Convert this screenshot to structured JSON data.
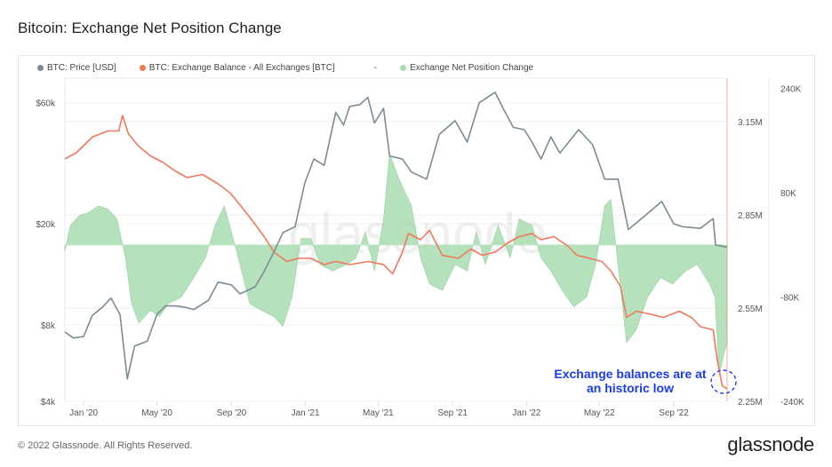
{
  "title": "Bitcoin: Exchange Net Position Change",
  "footer": "© 2022 Glassnode. All Rights Reserved.",
  "brand": "glassnode",
  "watermark": "glassnode",
  "annotation": "Exchange balances are at an historic low",
  "colors": {
    "price": "#7c8b94",
    "balance": "#f0785a",
    "net": "#a8dcb0",
    "annotation": "#1a3cf0"
  },
  "chart_data": {
    "type": "line",
    "title": "Bitcoin: Exchange Net Position Change",
    "legend": [
      "BTC: Price [USD]",
      "BTC: Exchange Balance - All Exchanges [BTC]",
      "-",
      "Exchange Net Position Change"
    ],
    "legend_position": "top-left",
    "x_ticks": [
      "Jan '20",
      "May '20",
      "Sep '20",
      "Jan '21",
      "May '21",
      "Sep '21",
      "Jan '22",
      "May '22",
      "Sep '22"
    ],
    "xlim": [
      "2019-12-01",
      "2022-11-28"
    ],
    "y_left": {
      "scale": "log",
      "ticks": [
        "$4k",
        "$8k",
        "$20k",
        "$60k"
      ],
      "tick_values": [
        4000,
        8000,
        20000,
        60000
      ],
      "range": [
        4000,
        75000
      ]
    },
    "y_right1": {
      "ticks": [
        "2.25M",
        "2.55M",
        "2.85M",
        "3.15M"
      ],
      "tick_values": [
        2.25,
        2.55,
        2.85,
        3.15
      ],
      "range": [
        2.25,
        3.29
      ]
    },
    "y_right2": {
      "ticks": [
        "240K",
        "80K",
        "-80K",
        "-240K"
      ],
      "tick_values": [
        240,
        80,
        -80,
        -240
      ],
      "range": [
        -240,
        256
      ]
    },
    "series": [
      {
        "name": "BTC: Price [USD]",
        "axis": "left",
        "points": [
          [
            "2019-12-01",
            7500
          ],
          [
            "2019-12-15",
            7100
          ],
          [
            "2020-01-01",
            7200
          ],
          [
            "2020-01-15",
            8700
          ],
          [
            "2020-02-01",
            9400
          ],
          [
            "2020-02-15",
            10200
          ],
          [
            "2020-03-01",
            8800
          ],
          [
            "2020-03-13",
            4900
          ],
          [
            "2020-03-25",
            6600
          ],
          [
            "2020-04-15",
            6900
          ],
          [
            "2020-05-01",
            8800
          ],
          [
            "2020-05-15",
            9500
          ],
          [
            "2020-06-01",
            9500
          ],
          [
            "2020-06-15",
            9400
          ],
          [
            "2020-07-01",
            9200
          ],
          [
            "2020-07-25",
            10000
          ],
          [
            "2020-08-10",
            11800
          ],
          [
            "2020-09-01",
            11500
          ],
          [
            "2020-09-15",
            10600
          ],
          [
            "2020-10-10",
            11300
          ],
          [
            "2020-10-25",
            13000
          ],
          [
            "2020-11-10",
            15500
          ],
          [
            "2020-11-25",
            18500
          ],
          [
            "2020-12-15",
            19500
          ],
          [
            "2020-12-31",
            29000
          ],
          [
            "2021-01-15",
            36000
          ],
          [
            "2021-02-01",
            34000
          ],
          [
            "2021-02-20",
            55000
          ],
          [
            "2021-03-05",
            49000
          ],
          [
            "2021-03-15",
            58000
          ],
          [
            "2021-04-01",
            59000
          ],
          [
            "2021-04-14",
            63000
          ],
          [
            "2021-04-25",
            50000
          ],
          [
            "2021-05-10",
            57000
          ],
          [
            "2021-05-20",
            37000
          ],
          [
            "2021-06-10",
            36000
          ],
          [
            "2021-06-25",
            32000
          ],
          [
            "2021-07-20",
            30000
          ],
          [
            "2021-08-10",
            45000
          ],
          [
            "2021-09-05",
            51000
          ],
          [
            "2021-09-25",
            42000
          ],
          [
            "2021-10-15",
            60000
          ],
          [
            "2021-11-10",
            66000
          ],
          [
            "2021-11-25",
            56000
          ],
          [
            "2021-12-10",
            48000
          ],
          [
            "2021-12-28",
            47000
          ],
          [
            "2022-01-10",
            42000
          ],
          [
            "2022-01-25",
            36000
          ],
          [
            "2022-02-10",
            44000
          ],
          [
            "2022-02-25",
            38000
          ],
          [
            "2022-03-28",
            47000
          ],
          [
            "2022-04-20",
            41000
          ],
          [
            "2022-05-10",
            30000
          ],
          [
            "2022-06-01",
            30000
          ],
          [
            "2022-06-18",
            19000
          ],
          [
            "2022-07-10",
            21000
          ],
          [
            "2022-08-12",
            24500
          ],
          [
            "2022-09-01",
            20000
          ],
          [
            "2022-09-15",
            19500
          ],
          [
            "2022-10-15",
            19200
          ],
          [
            "2022-11-05",
            21000
          ],
          [
            "2022-11-09",
            16500
          ],
          [
            "2022-11-28",
            16200
          ]
        ]
      },
      {
        "name": "BTC: Exchange Balance - All Exchanges [BTC]",
        "axis": "right1",
        "unit": "M",
        "points": [
          [
            "2019-12-01",
            3.03
          ],
          [
            "2019-12-20",
            3.05
          ],
          [
            "2020-01-15",
            3.1
          ],
          [
            "2020-02-10",
            3.12
          ],
          [
            "2020-02-28",
            3.12
          ],
          [
            "2020-03-05",
            3.17
          ],
          [
            "2020-03-15",
            3.11
          ],
          [
            "2020-04-01",
            3.07
          ],
          [
            "2020-04-20",
            3.04
          ],
          [
            "2020-05-10",
            3.02
          ],
          [
            "2020-06-01",
            2.99
          ],
          [
            "2020-06-20",
            2.97
          ],
          [
            "2020-07-15",
            2.98
          ],
          [
            "2020-08-10",
            2.95
          ],
          [
            "2020-08-30",
            2.92
          ],
          [
            "2020-09-20",
            2.87
          ],
          [
            "2020-10-10",
            2.82
          ],
          [
            "2020-10-25",
            2.78
          ],
          [
            "2020-11-10",
            2.73
          ],
          [
            "2020-12-01",
            2.7
          ],
          [
            "2020-12-20",
            2.71
          ],
          [
            "2021-01-10",
            2.71
          ],
          [
            "2021-02-01",
            2.69
          ],
          [
            "2021-02-20",
            2.7
          ],
          [
            "2021-03-15",
            2.69
          ],
          [
            "2021-04-15",
            2.7
          ],
          [
            "2021-05-10",
            2.69
          ],
          [
            "2021-05-25",
            2.66
          ],
          [
            "2021-06-10",
            2.73
          ],
          [
            "2021-06-20",
            2.79
          ],
          [
            "2021-07-10",
            2.77
          ],
          [
            "2021-07-25",
            2.8
          ],
          [
            "2021-08-15",
            2.72
          ],
          [
            "2021-09-10",
            2.71
          ],
          [
            "2021-10-01",
            2.74
          ],
          [
            "2021-10-20",
            2.72
          ],
          [
            "2021-11-10",
            2.73
          ],
          [
            "2021-12-01",
            2.76
          ],
          [
            "2021-12-20",
            2.78
          ],
          [
            "2022-01-10",
            2.79
          ],
          [
            "2022-01-25",
            2.77
          ],
          [
            "2022-02-15",
            2.78
          ],
          [
            "2022-03-10",
            2.75
          ],
          [
            "2022-03-25",
            2.72
          ],
          [
            "2022-04-15",
            2.71
          ],
          [
            "2022-05-05",
            2.7
          ],
          [
            "2022-05-20",
            2.67
          ],
          [
            "2022-06-05",
            2.62
          ],
          [
            "2022-06-15",
            2.52
          ],
          [
            "2022-07-01",
            2.54
          ],
          [
            "2022-07-25",
            2.53
          ],
          [
            "2022-08-15",
            2.52
          ],
          [
            "2022-09-10",
            2.54
          ],
          [
            "2022-09-30",
            2.52
          ],
          [
            "2022-10-15",
            2.49
          ],
          [
            "2022-11-05",
            2.48
          ],
          [
            "2022-11-12",
            2.38
          ],
          [
            "2022-11-20",
            2.3
          ],
          [
            "2022-11-28",
            2.29
          ]
        ]
      },
      {
        "name": "Exchange Net Position Change",
        "axis": "right2",
        "unit": "K",
        "type": "area",
        "points": [
          [
            "2019-12-01",
            -10
          ],
          [
            "2019-12-10",
            30
          ],
          [
            "2019-12-25",
            45
          ],
          [
            "2020-01-10",
            50
          ],
          [
            "2020-01-25",
            60
          ],
          [
            "2020-02-10",
            55
          ],
          [
            "2020-02-25",
            40
          ],
          [
            "2020-03-10",
            -20
          ],
          [
            "2020-03-20",
            -90
          ],
          [
            "2020-04-01",
            -120
          ],
          [
            "2020-04-20",
            -100
          ],
          [
            "2020-05-05",
            -110
          ],
          [
            "2020-05-20",
            -90
          ],
          [
            "2020-06-10",
            -80
          ],
          [
            "2020-07-01",
            -50
          ],
          [
            "2020-07-20",
            -20
          ],
          [
            "2020-08-05",
            30
          ],
          [
            "2020-08-20",
            60
          ],
          [
            "2020-09-01",
            20
          ],
          [
            "2020-09-15",
            -30
          ],
          [
            "2020-10-01",
            -90
          ],
          [
            "2020-10-20",
            -100
          ],
          [
            "2020-11-10",
            -110
          ],
          [
            "2020-11-25",
            -125
          ],
          [
            "2020-12-10",
            -80
          ],
          [
            "2020-12-25",
            10
          ],
          [
            "2021-01-10",
            10
          ],
          [
            "2021-01-25",
            -30
          ],
          [
            "2021-02-15",
            -40
          ],
          [
            "2021-03-10",
            -30
          ],
          [
            "2021-03-25",
            -20
          ],
          [
            "2021-04-10",
            20
          ],
          [
            "2021-04-25",
            -40
          ],
          [
            "2021-05-10",
            40
          ],
          [
            "2021-05-20",
            140
          ],
          [
            "2021-06-05",
            100
          ],
          [
            "2021-06-25",
            60
          ],
          [
            "2021-07-10",
            -20
          ],
          [
            "2021-07-25",
            -60
          ],
          [
            "2021-08-15",
            -70
          ],
          [
            "2021-09-05",
            -30
          ],
          [
            "2021-09-25",
            -40
          ],
          [
            "2021-10-10",
            20
          ],
          [
            "2021-10-25",
            -30
          ],
          [
            "2021-11-15",
            30
          ],
          [
            "2021-12-05",
            -20
          ],
          [
            "2021-12-20",
            40
          ],
          [
            "2022-01-10",
            30
          ],
          [
            "2022-01-25",
            -20
          ],
          [
            "2022-02-10",
            -40
          ],
          [
            "2022-03-01",
            -70
          ],
          [
            "2022-03-20",
            -95
          ],
          [
            "2022-04-10",
            -80
          ],
          [
            "2022-04-25",
            -30
          ],
          [
            "2022-05-10",
            60
          ],
          [
            "2022-05-20",
            70
          ],
          [
            "2022-06-01",
            -30
          ],
          [
            "2022-06-15",
            -150
          ],
          [
            "2022-07-01",
            -130
          ],
          [
            "2022-07-20",
            -80
          ],
          [
            "2022-08-10",
            -50
          ],
          [
            "2022-08-30",
            -60
          ],
          [
            "2022-09-20",
            -40
          ],
          [
            "2022-10-10",
            -30
          ],
          [
            "2022-10-30",
            -60
          ],
          [
            "2022-11-08",
            -80
          ],
          [
            "2022-11-15",
            -200
          ],
          [
            "2022-11-22",
            -170
          ],
          [
            "2022-11-28",
            -150
          ]
        ]
      }
    ]
  }
}
